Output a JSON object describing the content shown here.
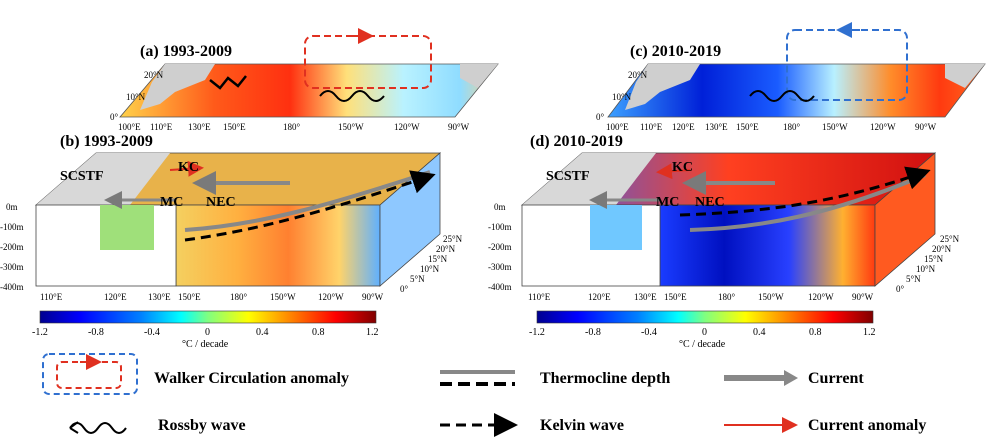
{
  "panels": {
    "a": {
      "title": "(a) 1993-2009",
      "lon_ticks": [
        "100°E",
        "110°E",
        "130°E",
        "150°E",
        "180°",
        "150°W",
        "120°W",
        "90°W"
      ],
      "lat_ticks": [
        "20°N",
        "10°N",
        "0°"
      ]
    },
    "b": {
      "title": "(b) 1993-2009",
      "lon_ticks": [
        "110°E",
        "120°E",
        "130°E",
        "150°E",
        "180°",
        "150°W",
        "120°W",
        "90°W"
      ],
      "depth_ticks": [
        "0m",
        "-100m",
        "-200m",
        "-300m",
        "-400m"
      ],
      "lat_ticks": [
        "25°N",
        "20°N",
        "15°N",
        "10°N",
        "5°N",
        "0°"
      ],
      "currents": [
        "SCSTF",
        "KC",
        "MC",
        "NEC"
      ]
    },
    "c": {
      "title": "(c) 2010-2019",
      "lon_ticks": [
        "100°E",
        "110°E",
        "120°E",
        "130°E",
        "150°E",
        "180°",
        "150°W",
        "120°W",
        "90°W"
      ],
      "lat_ticks": [
        "20°N",
        "10°N",
        "0°"
      ]
    },
    "d": {
      "title": "(d) 2010-2019",
      "lon_ticks": [
        "110°E",
        "120°E",
        "130°E",
        "150°E",
        "180°",
        "150°W",
        "120°W",
        "90°W"
      ],
      "depth_ticks": [
        "0m",
        "-100m",
        "-200m",
        "-300m",
        "-400m"
      ],
      "lat_ticks": [
        "25°N",
        "20°N",
        "15°N",
        "10°N",
        "5°N",
        "0°"
      ],
      "currents": [
        "SCSTF",
        "KC",
        "MC",
        "NEC"
      ]
    }
  },
  "colorbar": {
    "ticks": [
      "-1.2",
      "-0.8",
      "-0.4",
      "0",
      "0.4",
      "0.8",
      "1.2"
    ],
    "unit": "°C / decade",
    "colors": [
      "#00008f",
      "#0000ff",
      "#0080ff",
      "#00ffff",
      "#80ff80",
      "#ffff00",
      "#ff8000",
      "#ff0000",
      "#800000"
    ]
  },
  "legend": {
    "walker": "Walker Circulation anomaly",
    "thermocline": "Thermocline depth",
    "current": "Current",
    "rossby": "Rossby wave",
    "kelvin": "Kelvin wave",
    "current_anomaly": "Current anomaly"
  }
}
